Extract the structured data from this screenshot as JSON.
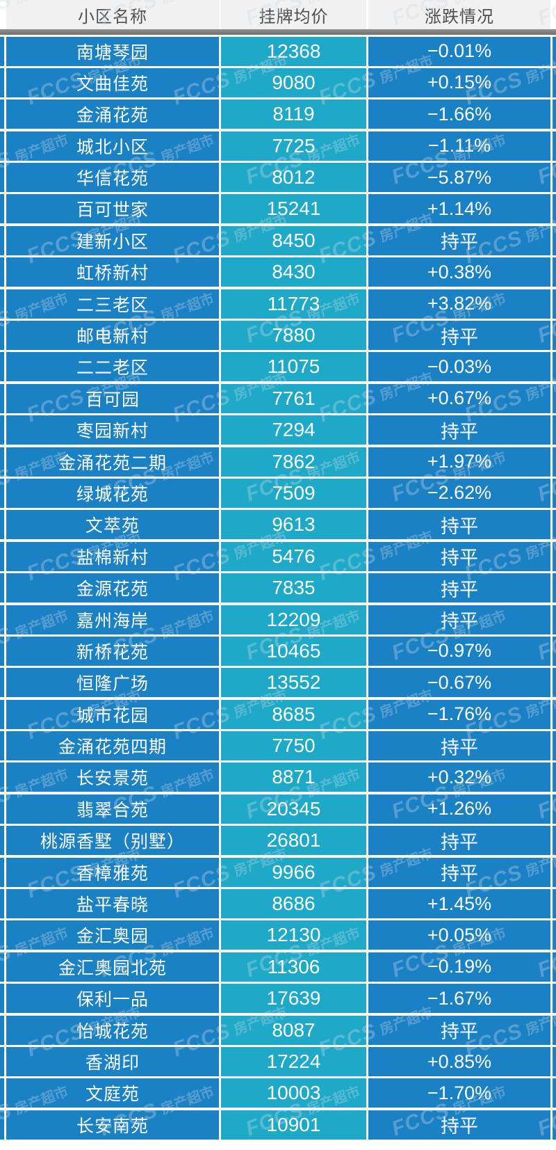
{
  "table": {
    "headers": [
      "小区名称",
      "挂牌均价",
      "涨跌情况"
    ],
    "rows": [
      {
        "name": "南塘琴园",
        "price": "12368",
        "change": "−0.01%"
      },
      {
        "name": "文曲佳苑",
        "price": "9080",
        "change": "+0.15%"
      },
      {
        "name": "金涌花苑",
        "price": "8119",
        "change": "−1.66%"
      },
      {
        "name": "城北小区",
        "price": "7725",
        "change": "−1.11%"
      },
      {
        "name": "华信花苑",
        "price": "8012",
        "change": "−5.87%"
      },
      {
        "name": "百可世家",
        "price": "15241",
        "change": "+1.14%"
      },
      {
        "name": "建新小区",
        "price": "8450",
        "change": "持平"
      },
      {
        "name": "虹桥新村",
        "price": "8430",
        "change": "+0.38%"
      },
      {
        "name": "二三老区",
        "price": "11773",
        "change": "+3.82%"
      },
      {
        "name": "邮电新村",
        "price": "7880",
        "change": "持平"
      },
      {
        "name": "二二老区",
        "price": "11075",
        "change": "−0.03%"
      },
      {
        "name": "百可园",
        "price": "7761",
        "change": "+0.67%"
      },
      {
        "name": "枣园新村",
        "price": "7294",
        "change": "持平"
      },
      {
        "name": "金涌花苑二期",
        "price": "7862",
        "change": "+1.97%"
      },
      {
        "name": "绿城花苑",
        "price": "7509",
        "change": "−2.62%"
      },
      {
        "name": "文萃苑",
        "price": "9613",
        "change": "持平"
      },
      {
        "name": "盐棉新村",
        "price": "5476",
        "change": "持平"
      },
      {
        "name": "金源花苑",
        "price": "7835",
        "change": "持平"
      },
      {
        "name": "嘉州海岸",
        "price": "12209",
        "change": "持平"
      },
      {
        "name": "新桥花苑",
        "price": "10465",
        "change": "−0.97%"
      },
      {
        "name": "恒隆广场",
        "price": "13552",
        "change": "−0.67%"
      },
      {
        "name": "城市花园",
        "price": "8685",
        "change": "−1.76%"
      },
      {
        "name": "金涌花苑四期",
        "price": "7750",
        "change": "持平"
      },
      {
        "name": "长安景苑",
        "price": "8871",
        "change": "+0.32%"
      },
      {
        "name": "翡翠合苑",
        "price": "20345",
        "change": "+1.26%"
      },
      {
        "name": "桃源香墅（别墅）",
        "price": "26801",
        "change": "持平"
      },
      {
        "name": "香樟雅苑",
        "price": "9966",
        "change": "持平"
      },
      {
        "name": "盐平春晓",
        "price": "8686",
        "change": "+1.45%"
      },
      {
        "name": "金汇奥园",
        "price": "12130",
        "change": "+0.05%"
      },
      {
        "name": "金汇奥园北苑",
        "price": "11306",
        "change": "−0.19%"
      },
      {
        "name": "保利一品",
        "price": "17639",
        "change": "−1.67%"
      },
      {
        "name": "怡城花苑",
        "price": "8087",
        "change": "持平"
      },
      {
        "name": "香湖印",
        "price": "17224",
        "change": "+0.85%"
      },
      {
        "name": "文庭苑",
        "price": "10003",
        "change": "−1.70%"
      },
      {
        "name": "长安南苑",
        "price": "10901",
        "change": "持平"
      }
    ]
  },
  "watermark": {
    "brand": "FCCS",
    "suffix": "房产超市"
  },
  "colors": {
    "row_blue": "#1b81c5",
    "price_teal": "#1fa9c9",
    "header_bg": "#f1f1f1",
    "header_text": "#4e4e4e",
    "divider_gray": "#7d7d7d",
    "cell_text": "#ffffff"
  },
  "chart_data": {
    "type": "table",
    "title": "",
    "columns": [
      "小区名称",
      "挂牌均价",
      "涨跌情况"
    ],
    "rows": [
      [
        "南塘琴园",
        12368,
        "−0.01%"
      ],
      [
        "文曲佳苑",
        9080,
        "+0.15%"
      ],
      [
        "金涌花苑",
        8119,
        "−1.66%"
      ],
      [
        "城北小区",
        7725,
        "−1.11%"
      ],
      [
        "华信花苑",
        8012,
        "−5.87%"
      ],
      [
        "百可世家",
        15241,
        "+1.14%"
      ],
      [
        "建新小区",
        8450,
        "持平"
      ],
      [
        "虹桥新村",
        8430,
        "+0.38%"
      ],
      [
        "二三老区",
        11773,
        "+3.82%"
      ],
      [
        "邮电新村",
        7880,
        "持平"
      ],
      [
        "二二老区",
        11075,
        "−0.03%"
      ],
      [
        "百可园",
        7761,
        "+0.67%"
      ],
      [
        "枣园新村",
        7294,
        "持平"
      ],
      [
        "金涌花苑二期",
        7862,
        "+1.97%"
      ],
      [
        "绿城花苑",
        7509,
        "−2.62%"
      ],
      [
        "文萃苑",
        9613,
        "持平"
      ],
      [
        "盐棉新村",
        5476,
        "持平"
      ],
      [
        "金源花苑",
        7835,
        "持平"
      ],
      [
        "嘉州海岸",
        12209,
        "持平"
      ],
      [
        "新桥花苑",
        10465,
        "−0.97%"
      ],
      [
        "恒隆广场",
        13552,
        "−0.67%"
      ],
      [
        "城市花园",
        8685,
        "−1.76%"
      ],
      [
        "金涌花苑四期",
        7750,
        "持平"
      ],
      [
        "长安景苑",
        8871,
        "+0.32%"
      ],
      [
        "翡翠合苑",
        20345,
        "+1.26%"
      ],
      [
        "桃源香墅（别墅）",
        26801,
        "持平"
      ],
      [
        "香樟雅苑",
        9966,
        "持平"
      ],
      [
        "盐平春晓",
        8686,
        "+1.45%"
      ],
      [
        "金汇奥园",
        12130,
        "+0.05%"
      ],
      [
        "金汇奥园北苑",
        11306,
        "−0.19%"
      ],
      [
        "保利一品",
        17639,
        "−1.67%"
      ],
      [
        "怡城花苑",
        8087,
        "持平"
      ],
      [
        "香湖印",
        17224,
        "+0.85%"
      ],
      [
        "文庭苑",
        10003,
        "−1.70%"
      ],
      [
        "长安南苑",
        10901,
        "持平"
      ]
    ]
  }
}
